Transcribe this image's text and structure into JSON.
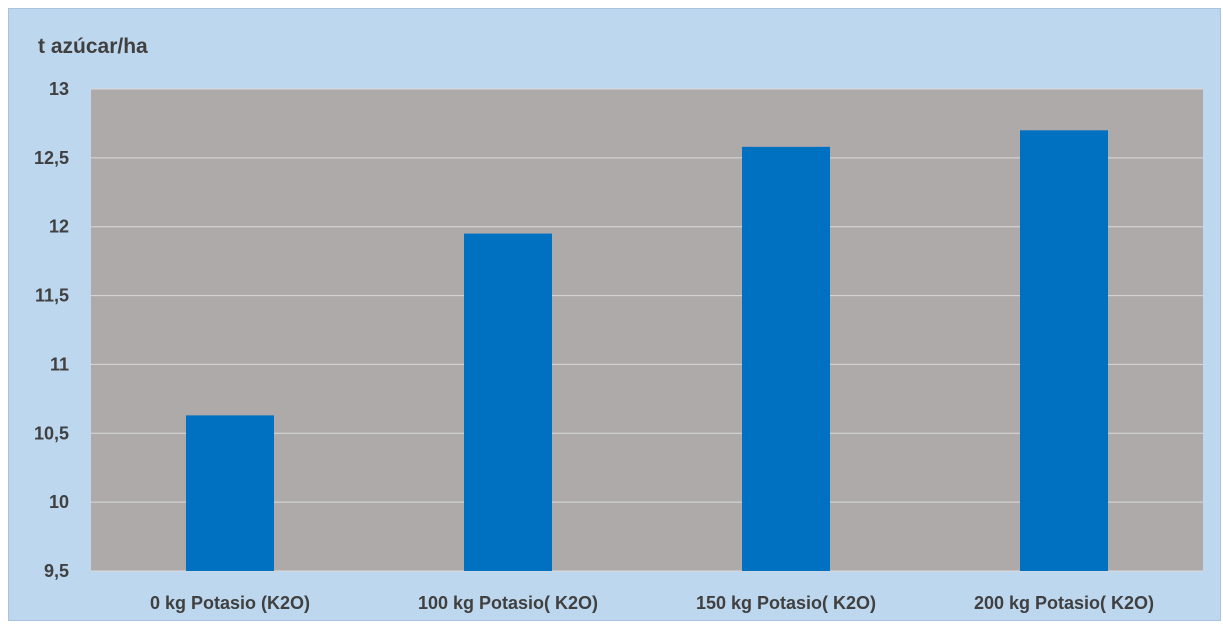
{
  "chart_data": {
    "type": "bar",
    "title": "",
    "ylabel": "t azúcar/ha",
    "xlabel": "",
    "ylim": [
      9.5,
      13
    ],
    "yticks": [
      9.5,
      10,
      10.5,
      11,
      11.5,
      12,
      12.5,
      13
    ],
    "ytick_labels": [
      "9,5",
      "10",
      "10,5",
      "11",
      "11,5",
      "12",
      "12,5",
      "13"
    ],
    "categories": [
      "0 kg Potasio (K2O)",
      "100 kg Potasio( K2O)",
      "150 kg Potasio( K2O)",
      "200 kg Potasio( K2O)"
    ],
    "values": [
      10.63,
      11.95,
      12.58,
      12.7
    ],
    "grid": true,
    "legend": "none",
    "colors": {
      "bar": "#0070c0",
      "plot_background": "#aeaaaa",
      "chart_background": "#bdd7ee",
      "gridline": "#d9d9d9",
      "text": "#404040"
    }
  }
}
